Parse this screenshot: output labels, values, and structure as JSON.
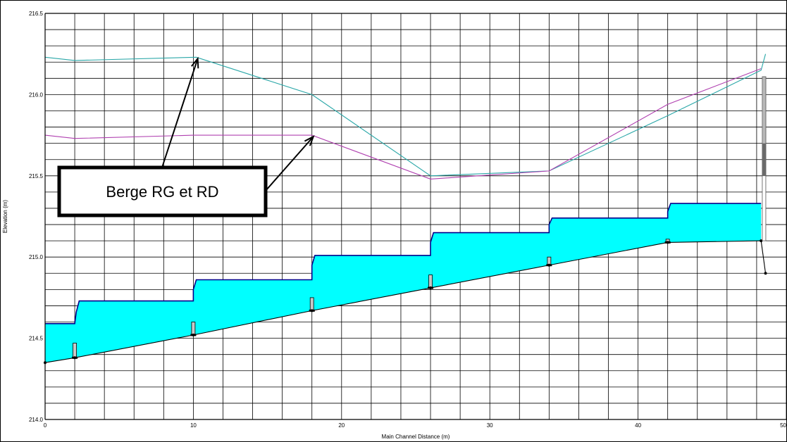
{
  "chart_data": {
    "type": "line",
    "title": "",
    "xlabel": "Main Channel Distance (m)",
    "ylabel": "Elevation (m)",
    "xlim": [
      0,
      50
    ],
    "ylim": [
      214.0,
      216.5
    ],
    "grid": true,
    "x_ticks": [
      "0",
      "10",
      "20",
      "30",
      "40",
      "50"
    ],
    "y_ticks": [
      "214.0",
      "214.5",
      "215.0",
      "215.5",
      "216.0",
      "216.5"
    ],
    "series": [
      {
        "role": "bank-left",
        "color": "#2aa7a8",
        "x": [
          0,
          2.0,
          10.2,
          18.0,
          26.0,
          34.0,
          42.0,
          48.3,
          48.6
        ],
        "y": [
          216.23,
          216.21,
          216.23,
          216.0,
          215.5,
          215.53,
          215.87,
          216.15,
          216.25
        ]
      },
      {
        "role": "bank-right",
        "color": "#b040b0",
        "x": [
          0,
          2.0,
          10.0,
          18.0,
          26.0,
          34.0,
          42.0,
          48.3
        ],
        "y": [
          215.75,
          215.73,
          215.75,
          215.75,
          215.48,
          215.53,
          215.94,
          216.16
        ]
      },
      {
        "role": "water-surface",
        "color": "#00008b",
        "fill": "#00ffff",
        "x": [
          0,
          2.0,
          2.1,
          2.3,
          10.0,
          10.0,
          10.2,
          18.0,
          18.0,
          18.2,
          26.0,
          26.0,
          26.2,
          34.0,
          34.0,
          34.2,
          42.0,
          42.0,
          42.2,
          48.3
        ],
        "y": [
          214.59,
          214.59,
          214.66,
          214.73,
          214.73,
          214.8,
          214.86,
          214.86,
          214.95,
          215.01,
          215.01,
          215.09,
          215.15,
          215.15,
          215.2,
          215.24,
          215.24,
          215.28,
          215.33,
          215.33
        ]
      },
      {
        "role": "channel-bed",
        "color": "#000000",
        "x": [
          0,
          2.0,
          10.0,
          18.0,
          26.0,
          34.0,
          42.0,
          48.3,
          48.6
        ],
        "y": [
          214.35,
          214.38,
          214.52,
          214.67,
          214.81,
          214.95,
          215.09,
          215.1,
          214.9
        ]
      }
    ],
    "structures": [
      {
        "x": 2.0,
        "y_bottom": 214.38,
        "y_top": 214.47
      },
      {
        "x": 10.0,
        "y_bottom": 214.52,
        "y_top": 214.6
      },
      {
        "x": 18.0,
        "y_bottom": 214.67,
        "y_top": 214.75
      },
      {
        "x": 26.0,
        "y_bottom": 214.81,
        "y_top": 214.89
      },
      {
        "x": 34.0,
        "y_bottom": 214.95,
        "y_top": 215.0
      },
      {
        "x": 42.0,
        "y_bottom": 215.09,
        "y_top": 215.11
      }
    ],
    "end_gate": {
      "x": 48.5,
      "y_light_bottom": 215.1,
      "y_dark_bottom": 215.5,
      "y_dark_top": 215.7,
      "y_top": 216.11
    },
    "annotations": [
      {
        "text": "Berge RG et RD",
        "arrows_to": [
          [
            10.2,
            216.23
          ],
          [
            18.0,
            215.75
          ]
        ]
      }
    ]
  }
}
